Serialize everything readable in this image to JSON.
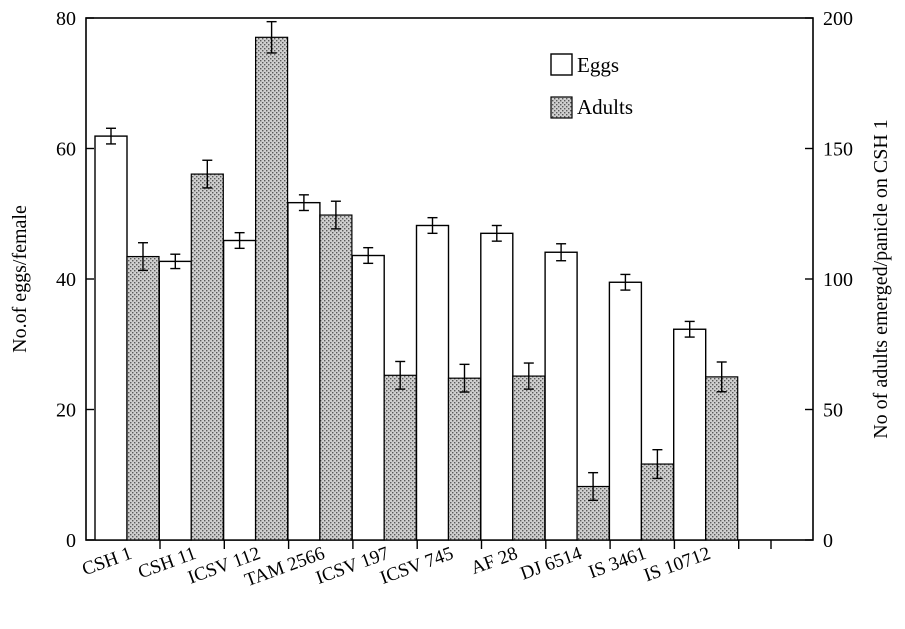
{
  "chart_data": {
    "type": "bar",
    "title": "",
    "xlabel": "",
    "ylabel": "No.of eggs/female",
    "y2label": "No of adults emerged/panicle on CSH 1",
    "ylim": [
      0,
      80
    ],
    "y2lim": [
      0,
      200
    ],
    "yticks": [
      "0",
      "20",
      "40",
      "60",
      "80"
    ],
    "y2ticks": [
      "0",
      "50",
      "100",
      "150",
      "200"
    ],
    "categories": [
      "CSH 1",
      "CSH 11",
      "ICSV 112",
      "TAM 2566",
      "ICSV 197",
      "ICSV 745",
      "AF 28",
      "DJ 6514",
      "IS 3461",
      "IS 10712"
    ],
    "series": [
      {
        "name": "Eggs",
        "axis": "left",
        "pattern": "open",
        "values": [
          61.9,
          42.7,
          45.9,
          51.7,
          43.6,
          48.2,
          47.0,
          44.1,
          39.5,
          32.3
        ],
        "errors": [
          1.2,
          1.1,
          1.2,
          1.2,
          1.2,
          1.2,
          1.2,
          1.3,
          1.2,
          1.2
        ]
      },
      {
        "name": "Adults",
        "axis": "right",
        "pattern": "stippled",
        "values": [
          108.6,
          140.2,
          192.6,
          124.5,
          63.1,
          62.0,
          62.8,
          20.5,
          29.1,
          62.5
        ],
        "errors": [
          5.3,
          5.3,
          6.0,
          5.3,
          5.3,
          5.3,
          5.0,
          5.3,
          5.5,
          5.7
        ]
      }
    ],
    "legend": {
      "position": "top-right",
      "entries": [
        "Eggs",
        "Adults"
      ]
    },
    "grid": false
  }
}
